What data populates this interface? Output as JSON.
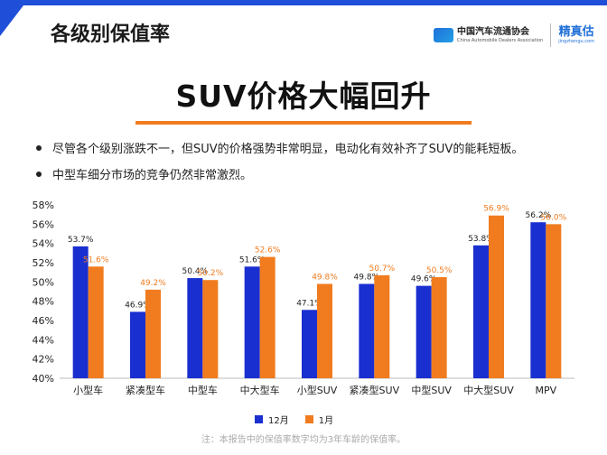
{
  "page_title": "各级别保值率",
  "logos": {
    "cada_cn": "中国汽车流通协会",
    "cada_en": "China Automobile Dealers Association",
    "jzg_cn": "精真估",
    "jzg_en": "jingzhengu.com"
  },
  "headline": "SUV价格大幅回升",
  "bullets": [
    "尽管各个级别涨跌不一，但SUV的价格强势非常明显，电动化有效补齐了SUV的能耗短板。",
    "中型车细分市场的竞争仍然非常激烈。"
  ],
  "footnote": "注：本报告中的保值率数字均为3年车龄的保值率。",
  "colors": {
    "accent_blue": "#1f4fd8",
    "bar_dec": "#1a2fd0",
    "bar_jan": "#f07c1f",
    "label_jan": "#f07c1f",
    "rule": "#f07c1f"
  },
  "chart_data": {
    "type": "bar",
    "categories": [
      "小型车",
      "紧凑型车",
      "中型车",
      "中大型车",
      "小型SUV",
      "紧凑型SUV",
      "中型SUV",
      "中大型SUV",
      "MPV"
    ],
    "series": [
      {
        "name": "12月",
        "values": [
          53.7,
          46.9,
          50.4,
          51.6,
          47.1,
          49.8,
          49.6,
          53.8,
          56.2
        ]
      },
      {
        "name": "1月",
        "values": [
          51.6,
          49.2,
          50.2,
          52.6,
          49.8,
          50.7,
          50.5,
          56.9,
          56.0
        ]
      }
    ],
    "ylim": [
      40,
      58
    ],
    "yticks": [
      "40%",
      "42%",
      "44%",
      "46%",
      "48%",
      "50%",
      "52%",
      "54%",
      "56%",
      "58%"
    ],
    "value_suffix": "%",
    "grid": false,
    "legend_position": "bottom"
  }
}
